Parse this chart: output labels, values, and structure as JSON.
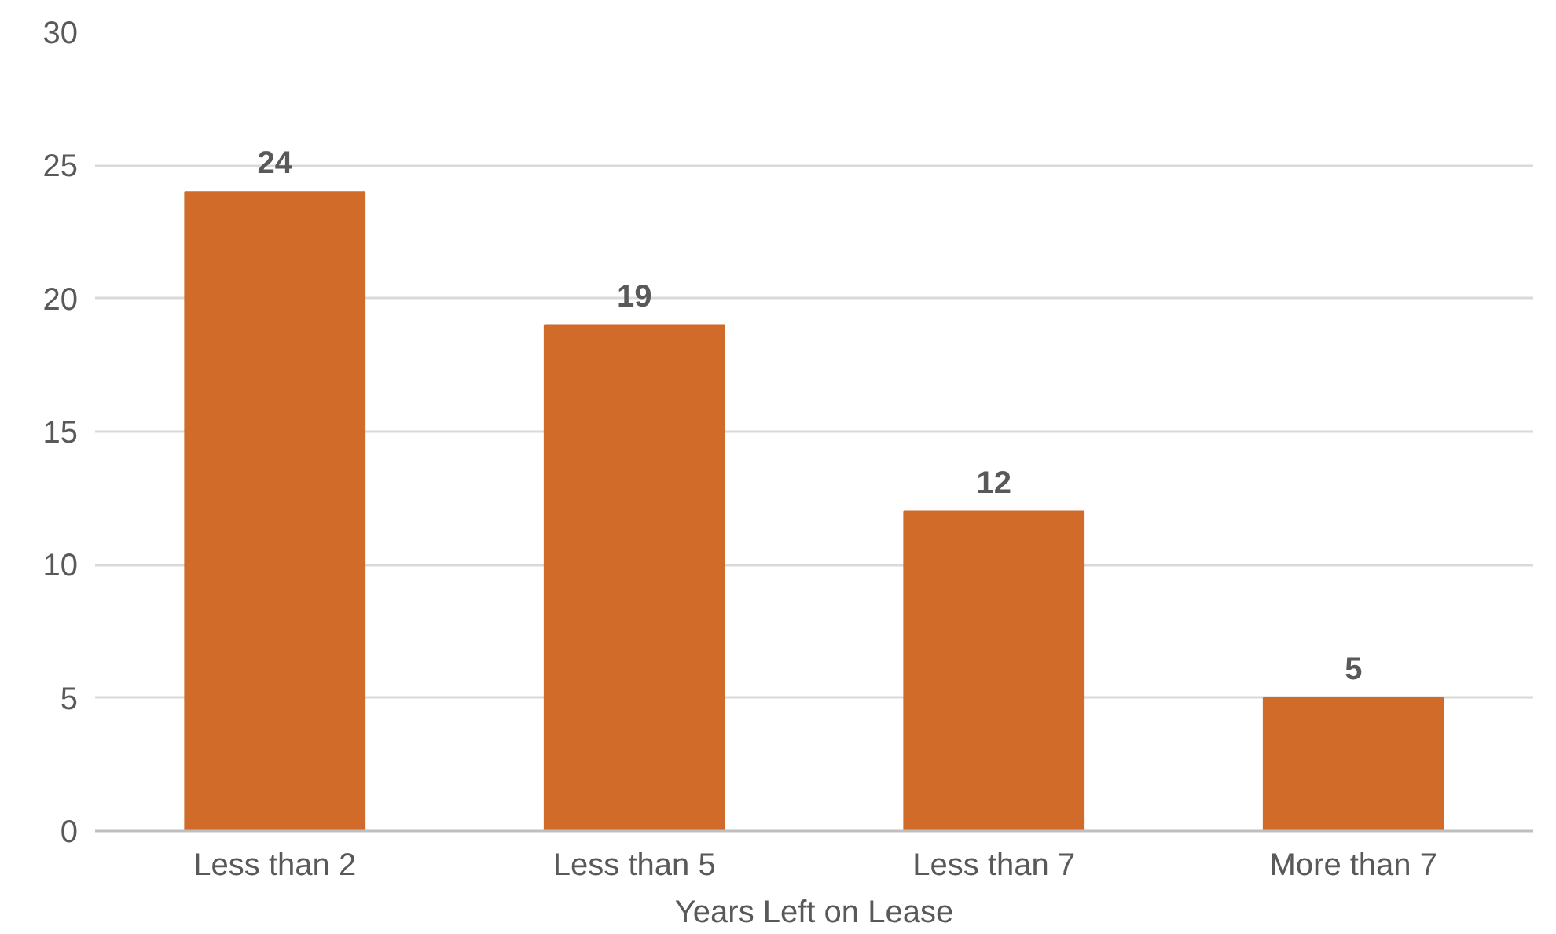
{
  "chart_data": {
    "type": "bar",
    "xlabel": "Years Left on Lease",
    "categories": [
      "Less than 2",
      "Less than 5",
      "Less than 7",
      "More than 7"
    ],
    "values": [
      24,
      19,
      12,
      5
    ],
    "color": "#d06b29",
    "ylim": [
      0,
      30
    ],
    "yticks": [
      0,
      5,
      10,
      15,
      20,
      25,
      30
    ],
    "grid": "y",
    "data_labels": true
  }
}
